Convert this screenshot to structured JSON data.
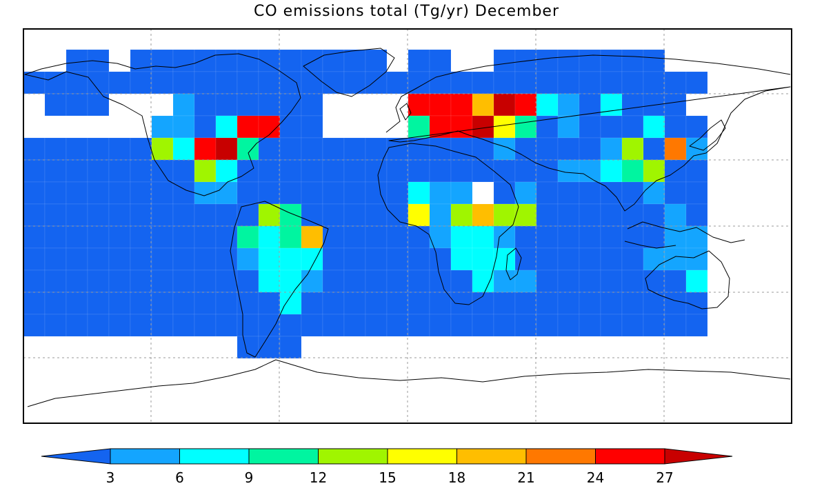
{
  "chart_data": {
    "type": "heatmap",
    "title": "CO emissions total (Tg/yr)  December",
    "grid": {
      "lon_start": -180,
      "lon_step": 10.7,
      "lat_top": 75,
      "lat_step": 10,
      "cols": 32,
      "rows": 14
    },
    "colorbar": {
      "ticks": [
        "3",
        "6",
        "9",
        "12",
        "15",
        "18",
        "21",
        "24",
        "27"
      ],
      "colors": [
        "#1464f0",
        "#14a5ff",
        "#00ffff",
        "#00f5a0",
        "#a0f500",
        "#ffff00",
        "#ffbe00",
        "#ff7800",
        "#ff0000",
        "#c80000"
      ]
    },
    "cells": [
      [
        -1,
        -1,
        0,
        0,
        -1,
        0,
        0,
        0,
        0,
        0,
        0,
        0,
        0,
        0,
        0,
        0,
        0,
        -1,
        0,
        0,
        -1,
        -1,
        0,
        0,
        0,
        0,
        0,
        0,
        0,
        0,
        -1,
        -1
      ],
      [
        0,
        0,
        0,
        0,
        0,
        0,
        0,
        0,
        0,
        0,
        0,
        0,
        0,
        0,
        0,
        0,
        0,
        0,
        0,
        0,
        0,
        0,
        0,
        0,
        0,
        0,
        0,
        0,
        0,
        0,
        0,
        0
      ],
      [
        -1,
        0,
        0,
        0,
        -1,
        -1,
        -1,
        1,
        0,
        0,
        0,
        0,
        0,
        0,
        -1,
        -1,
        -1,
        -1,
        8,
        8,
        8,
        6,
        9,
        8,
        2,
        1,
        0,
        2,
        0,
        0,
        0,
        -1
      ],
      [
        -1,
        -1,
        -1,
        -1,
        -1,
        -1,
        1,
        1,
        0,
        2,
        8,
        8,
        0,
        0,
        -1,
        -1,
        -1,
        -1,
        3,
        8,
        8,
        9,
        5,
        3,
        0,
        1,
        0,
        0,
        0,
        2,
        0,
        0
      ],
      [
        0,
        0,
        0,
        0,
        0,
        0,
        4,
        2,
        8,
        9,
        3,
        0,
        0,
        0,
        0,
        0,
        0,
        0,
        0,
        0,
        0,
        0,
        1,
        0,
        0,
        0,
        0,
        1,
        4,
        0,
        7,
        1
      ],
      [
        0,
        0,
        0,
        0,
        0,
        0,
        0,
        0,
        4,
        2,
        0,
        0,
        0,
        0,
        0,
        0,
        0,
        0,
        0,
        0,
        0,
        0,
        0,
        0,
        0,
        1,
        1,
        2,
        3,
        4,
        0,
        0
      ],
      [
        0,
        0,
        0,
        0,
        0,
        0,
        0,
        0,
        1,
        1,
        0,
        0,
        0,
        0,
        0,
        0,
        0,
        0,
        2,
        1,
        1,
        -1,
        0,
        1,
        0,
        0,
        0,
        0,
        0,
        1,
        0,
        0
      ],
      [
        0,
        0,
        0,
        0,
        0,
        0,
        0,
        0,
        0,
        0,
        0,
        4,
        3,
        0,
        0,
        0,
        0,
        0,
        5,
        1,
        4,
        6,
        4,
        4,
        0,
        0,
        0,
        0,
        0,
        0,
        1,
        0
      ],
      [
        0,
        0,
        0,
        0,
        0,
        0,
        0,
        0,
        0,
        0,
        3,
        2,
        3,
        6,
        0,
        0,
        0,
        0,
        0,
        1,
        2,
        2,
        1,
        0,
        0,
        0,
        0,
        0,
        0,
        0,
        1,
        1
      ],
      [
        0,
        0,
        0,
        0,
        0,
        0,
        0,
        0,
        0,
        0,
        1,
        2,
        2,
        2,
        0,
        0,
        0,
        0,
        0,
        0,
        2,
        2,
        2,
        0,
        0,
        0,
        0,
        0,
        0,
        1,
        1,
        1
      ],
      [
        0,
        0,
        0,
        0,
        0,
        0,
        0,
        0,
        0,
        0,
        0,
        2,
        2,
        1,
        0,
        0,
        0,
        0,
        0,
        0,
        0,
        2,
        1,
        1,
        0,
        0,
        0,
        0,
        0,
        0,
        0,
        2
      ],
      [
        0,
        0,
        0,
        0,
        0,
        0,
        0,
        0,
        0,
        0,
        0,
        0,
        2,
        0,
        0,
        0,
        0,
        0,
        0,
        0,
        0,
        0,
        0,
        0,
        0,
        0,
        0,
        0,
        0,
        0,
        0,
        0
      ],
      [
        0,
        0,
        0,
        0,
        0,
        0,
        0,
        0,
        0,
        0,
        0,
        0,
        0,
        0,
        0,
        0,
        0,
        0,
        0,
        0,
        0,
        0,
        0,
        0,
        0,
        0,
        0,
        0,
        0,
        0,
        0,
        0
      ],
      [
        -1,
        -1,
        -1,
        -1,
        -1,
        -1,
        -1,
        -1,
        -1,
        -1,
        0,
        0,
        0,
        -1,
        -1,
        -1,
        -1,
        -1,
        -1,
        -1,
        -1,
        -1,
        -1,
        -1,
        -1,
        -1,
        -1,
        -1,
        -1,
        -1,
        -1,
        -1
      ]
    ]
  }
}
